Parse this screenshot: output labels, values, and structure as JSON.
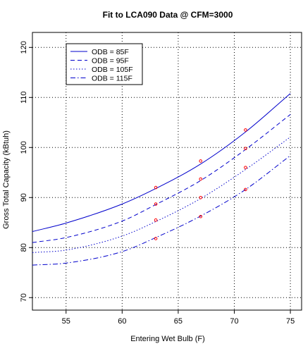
{
  "chart_data": {
    "type": "line",
    "title": "Fit to LCA090 Data @ CFM=3000",
    "xlabel": "Entering Wet Bulb (F)",
    "ylabel": "Gross Total Capacity (kBtuh)",
    "xlim": [
      52,
      76
    ],
    "ylim": [
      67.5,
      123
    ],
    "xticks": [
      55,
      60,
      65,
      70,
      75
    ],
    "yticks": [
      70,
      80,
      90,
      100,
      110,
      120
    ],
    "grid": true,
    "legend_position": "top-left",
    "colors": {
      "line": "#0000cc",
      "points": "#ff0000",
      "frame": "#000000",
      "grid": "#000000"
    },
    "series": [
      {
        "name": "ODB = 85F",
        "dash": "solid",
        "fit_x": [
          52,
          55,
          60,
          63,
          67,
          71,
          75
        ],
        "fit_y": [
          83.2,
          84.9,
          88.7,
          91.8,
          96.7,
          103.1,
          110.8
        ],
        "points": [
          [
            63,
            92.0
          ],
          [
            67,
            97.3
          ],
          [
            71,
            103.5
          ]
        ]
      },
      {
        "name": "ODB = 95F",
        "dash": "dashed",
        "fit_x": [
          52,
          55,
          60,
          63,
          67,
          71,
          75
        ],
        "fit_y": [
          81.0,
          82.0,
          85.3,
          88.6,
          93.4,
          99.6,
          106.6
        ],
        "points": [
          [
            63,
            88.7
          ],
          [
            67,
            93.7
          ],
          [
            71,
            99.8
          ]
        ]
      },
      {
        "name": "ODB = 105F",
        "dash": "dotted",
        "fit_x": [
          52,
          55,
          60,
          63,
          67,
          71,
          75
        ],
        "fit_y": [
          79.0,
          79.5,
          82.3,
          85.2,
          89.8,
          95.6,
          102.1
        ],
        "points": [
          [
            63,
            85.5
          ],
          [
            67,
            90.0
          ],
          [
            71,
            96.0
          ]
        ]
      },
      {
        "name": "ODB = 115F",
        "dash": "dashdot",
        "fit_x": [
          52,
          55,
          60,
          63,
          67,
          71,
          75
        ],
        "fit_y": [
          76.5,
          76.9,
          79.2,
          82.0,
          86.3,
          91.6,
          98.4
        ],
        "points": [
          [
            63,
            81.8
          ],
          [
            67,
            86.2
          ],
          [
            71,
            91.6
          ]
        ]
      }
    ]
  }
}
